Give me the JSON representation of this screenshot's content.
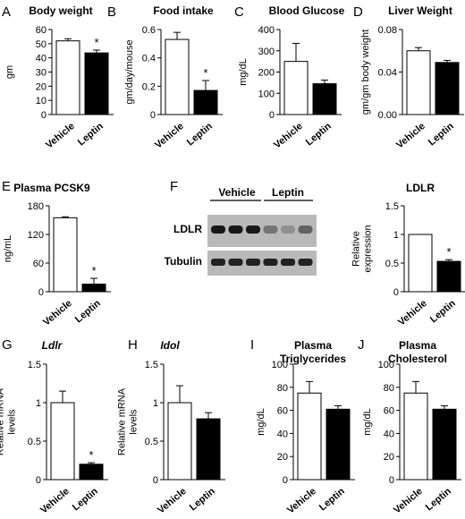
{
  "chart_data": [
    {
      "panel": "A",
      "type": "bar",
      "title": "Body weight",
      "categories": [
        "Vehicle",
        "Leptin"
      ],
      "fills": [
        "#ffffff",
        "#000000"
      ],
      "values": [
        52,
        43.5
      ],
      "errors": [
        1.5,
        2
      ],
      "significance": [
        "",
        "*"
      ],
      "ylabel": "gm",
      "ylim": [
        0,
        60
      ],
      "yticks": [
        "0",
        "10",
        "20",
        "30",
        "40",
        "50",
        "60"
      ]
    },
    {
      "panel": "B",
      "type": "bar",
      "title": "Food intake",
      "categories": [
        "Vehicle",
        "Leptin"
      ],
      "fills": [
        "#ffffff",
        "#000000"
      ],
      "values": [
        0.53,
        0.17
      ],
      "errors": [
        0.05,
        0.07
      ],
      "significance": [
        "",
        "*"
      ],
      "ylabel": "gm/day/mouse",
      "ylim": [
        0,
        0.6
      ],
      "yticks": [
        "0",
        "0.2",
        "0.4",
        "0.6"
      ]
    },
    {
      "panel": "C",
      "type": "bar",
      "title": "Blood Glucose",
      "categories": [
        "Vehicle",
        "Leptin"
      ],
      "fills": [
        "#ffffff",
        "#000000"
      ],
      "values": [
        250,
        145
      ],
      "errors": [
        85,
        17
      ],
      "significance": [
        "",
        ""
      ],
      "ylabel": "mg/dL",
      "ylim": [
        0,
        400
      ],
      "yticks": [
        "0",
        "100",
        "200",
        "300",
        "400"
      ]
    },
    {
      "panel": "D",
      "type": "bar",
      "title": "Liver Weight",
      "categories": [
        "Vehicle",
        "Leptin"
      ],
      "fills": [
        "#ffffff",
        "#000000"
      ],
      "values": [
        0.06,
        0.049
      ],
      "errors": [
        0.003,
        0.002
      ],
      "significance": [
        "",
        ""
      ],
      "ylabel": "gm/gm body weight",
      "ylim": [
        0,
        0.08
      ],
      "yticks": [
        "0.00",
        "0.04",
        "0.08"
      ]
    },
    {
      "panel": "E",
      "type": "bar",
      "title": "Plasma PCSK9",
      "categories": [
        "Vehicle",
        "Leptin"
      ],
      "fills": [
        "#ffffff",
        "#000000"
      ],
      "values": [
        155,
        16
      ],
      "errors": [
        2,
        12
      ],
      "significance": [
        "",
        "*"
      ],
      "ylabel": "ng/mL",
      "ylim": [
        0,
        180
      ],
      "yticks": [
        "0",
        "60",
        "120",
        "180"
      ]
    },
    {
      "panel": "F",
      "type": "bar",
      "title": "LDLR",
      "categories": [
        "Vehicle",
        "Leptin"
      ],
      "fills": [
        "#ffffff",
        "#000000"
      ],
      "values": [
        1,
        0.53
      ],
      "errors": [
        0,
        0.03
      ],
      "significance": [
        "",
        "*"
      ],
      "ylabel": "Relative expression",
      "ylim": [
        0,
        1.5
      ],
      "yticks": [
        "0",
        "0.5",
        "1",
        "1.5"
      ]
    },
    {
      "panel": "G",
      "type": "bar",
      "title": "Ldlr",
      "title_italic": true,
      "categories": [
        "Vehicle",
        "Leptin"
      ],
      "fills": [
        "#ffffff",
        "#000000"
      ],
      "values": [
        1,
        0.2
      ],
      "errors": [
        0.15,
        0.02
      ],
      "significance": [
        "",
        "*"
      ],
      "ylabel": "Relative mRNA levels",
      "ylim": [
        0,
        1.5
      ],
      "yticks": [
        "0",
        "0.5",
        "1",
        "1.5"
      ]
    },
    {
      "panel": "H",
      "type": "bar",
      "title": "Idol",
      "title_italic": true,
      "categories": [
        "Vehicle",
        "Leptin"
      ],
      "fills": [
        "#ffffff",
        "#000000"
      ],
      "values": [
        1,
        0.79
      ],
      "errors": [
        0.22,
        0.08
      ],
      "significance": [
        "",
        ""
      ],
      "ylabel": "Relative mRNA levels",
      "ylim": [
        0,
        1.5
      ],
      "yticks": [
        "0",
        "0.5",
        "1",
        "1.5"
      ]
    },
    {
      "panel": "I",
      "type": "bar",
      "title": "Plasma Triglycerides",
      "categories": [
        "Vehicle",
        "Leptin"
      ],
      "fills": [
        "#ffffff",
        "#000000"
      ],
      "values": [
        75,
        61
      ],
      "errors": [
        10,
        3
      ],
      "significance": [
        "",
        ""
      ],
      "ylabel": "mg/dL",
      "ylim": [
        0,
        100
      ],
      "yticks": [
        "0",
        "20",
        "40",
        "60",
        "80",
        "100"
      ]
    },
    {
      "panel": "J",
      "type": "bar",
      "title": "Plasma Cholesterol",
      "categories": [
        "Vehicle",
        "Leptin"
      ],
      "fills": [
        "#ffffff",
        "#000000"
      ],
      "values": [
        75,
        61
      ],
      "errors": [
        10,
        3
      ],
      "significance": [
        "",
        ""
      ],
      "ylabel": "mg/dL",
      "ylim": [
        0,
        100
      ],
      "yticks": [
        "0",
        "20",
        "40",
        "60",
        "80",
        "100"
      ]
    }
  ],
  "blot": {
    "panel": "F",
    "group_labels": [
      "Vehicle",
      "Leptin"
    ],
    "row_labels": [
      "LDLR",
      "Tubulin"
    ],
    "ldlr_band_intensity": [
      0.95,
      0.95,
      0.95,
      0.45,
      0.3,
      0.55
    ],
    "tubulin_band_intensity": [
      0.9,
      0.9,
      0.9,
      0.9,
      0.9,
      0.9
    ]
  }
}
